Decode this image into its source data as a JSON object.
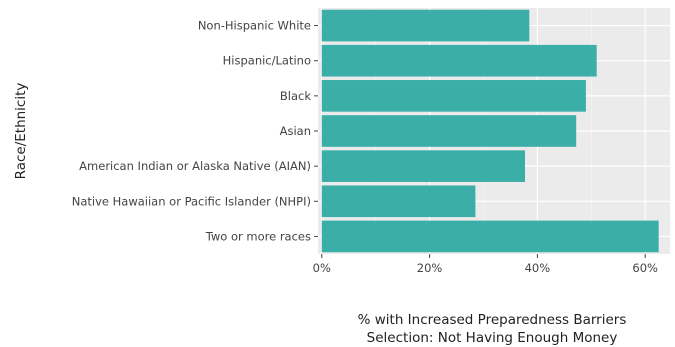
{
  "chart_data": {
    "type": "bar",
    "orientation": "horizontal",
    "categories": [
      "Non-Hispanic White",
      "Hispanic/Latino",
      "Black",
      "Asian",
      "American Indian or Alaska Native (AIAN)",
      "Native Hawaiian or Pacific Islander (NHPI)",
      "Two or more races"
    ],
    "values": [
      38.5,
      51,
      49,
      47.2,
      37.7,
      28.5,
      62.5
    ],
    "xlabel_lines": [
      "% with Increased Preparedness Barriers",
      "Selection: Not Having Enough Money"
    ],
    "ylabel": "Race/Ethnicity",
    "xlim": [
      -0.7,
      64.6
    ],
    "xticks": [
      0,
      20,
      40,
      60
    ],
    "xtick_labels": [
      "0%",
      "20%",
      "40%",
      "60%"
    ],
    "grid": true,
    "legend": "none",
    "colors": {
      "bar": "#3aaea7",
      "panel": "#ebebeb",
      "grid_major": "#ffffff"
    }
  }
}
